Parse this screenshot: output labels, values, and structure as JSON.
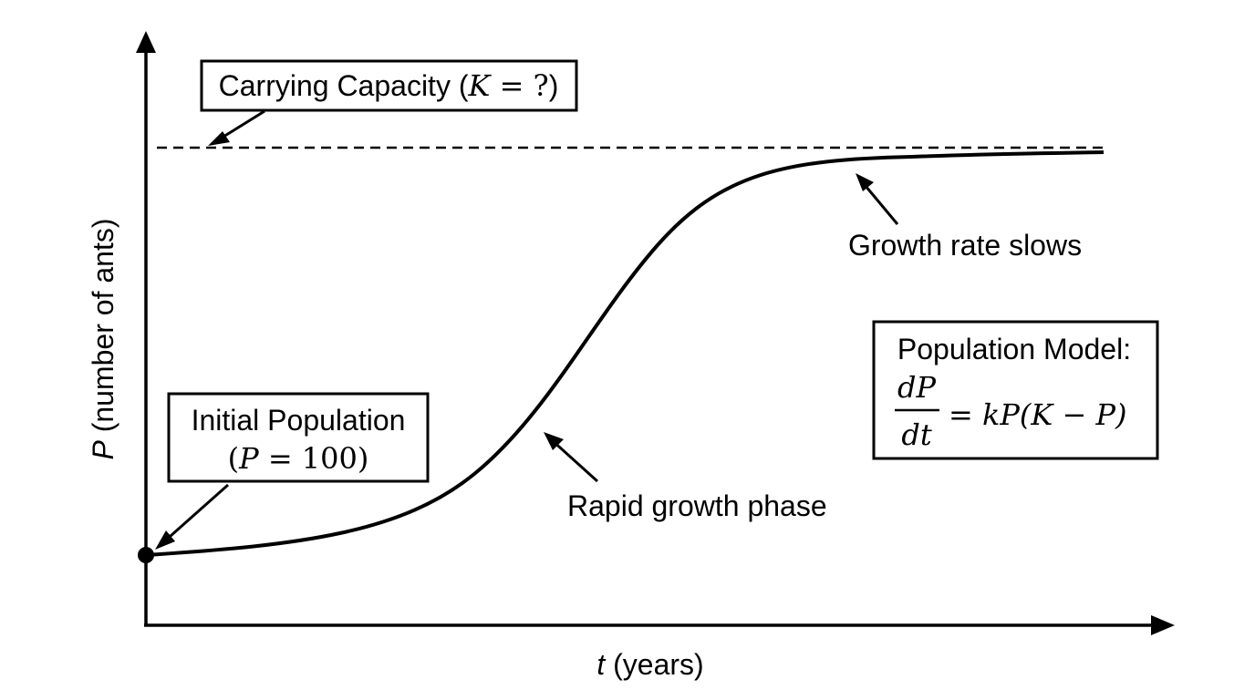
{
  "axes": {
    "y_label_var": "P",
    "y_label_rest": " (number of ants)",
    "x_label_var": "t",
    "x_label_rest": " (years)"
  },
  "carrying_box": {
    "text": "Carrying Capacity (",
    "var": "K",
    "eq": " = ?",
    "close": ")"
  },
  "initial_box": {
    "line1": "Initial Population",
    "open": "(",
    "var": "P",
    "eq": " = 100",
    "close": ")"
  },
  "annotations": {
    "rapid": "Rapid growth phase",
    "slows": "Growth rate slows"
  },
  "model_box": {
    "title": "Population Model:",
    "numerator": "dP",
    "denominator": "dt",
    "equation": "= kP(K − P)"
  }
}
